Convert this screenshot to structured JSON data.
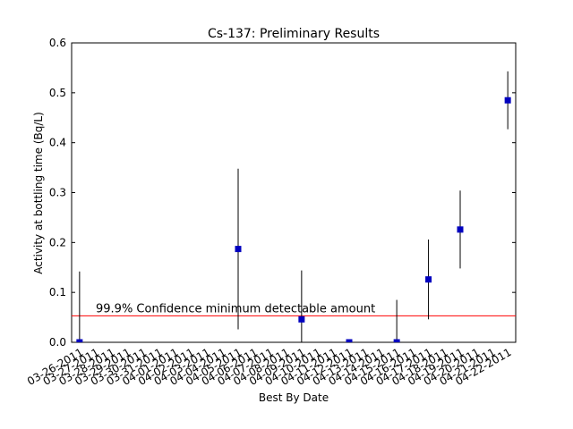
{
  "chart_data": {
    "type": "errorbar",
    "title": "Cs-137: Preliminary Results",
    "x_label": "Best By Date",
    "y_label": "Activity at bottling time (Bq/L)",
    "categories": [
      "03-26-2011",
      "03-27-2011",
      "03-28-2011",
      "03-29-2011",
      "03-30-2011",
      "03-31-2011",
      "04-01-2011",
      "04-02-2011",
      "04-03-2011",
      "04-04-2011",
      "04-05-2011",
      "04-06-2011",
      "04-07-2011",
      "04-08-2011",
      "04-09-2011",
      "04-10-2011",
      "04-11-2011",
      "04-12-2011",
      "04-13-2011",
      "04-14-2011",
      "04-15-2011",
      "04-16-2011",
      "04-17-2011",
      "04-18-2011",
      "04-19-2011",
      "04-20-2011",
      "04-21-2011",
      "04-22-2011"
    ],
    "values": [
      0,
      null,
      null,
      null,
      null,
      null,
      null,
      null,
      null,
      null,
      0.187,
      null,
      null,
      null,
      0.046,
      null,
      null,
      0,
      null,
      null,
      0,
      null,
      0.126,
      null,
      0.226,
      null,
      null,
      0.485
    ],
    "errors": [
      0.142,
      null,
      null,
      null,
      null,
      null,
      null,
      null,
      null,
      null,
      0.161,
      null,
      null,
      null,
      0.098,
      null,
      null,
      0,
      null,
      null,
      0.085,
      null,
      0.08,
      null,
      0.078,
      null,
      null,
      0.058
    ],
    "color": "#0000bf",
    "ylim": [
      0,
      0.6
    ],
    "yticks": [
      {
        "value": 0,
        "label": "0.0"
      },
      0.1,
      0.2,
      0.3,
      0.4,
      0.5,
      0.6
    ],
    "threshold": {
      "value": 0.053,
      "label": "99.9% Confidence minimum detectable amount",
      "color": "#ff0000"
    }
  }
}
